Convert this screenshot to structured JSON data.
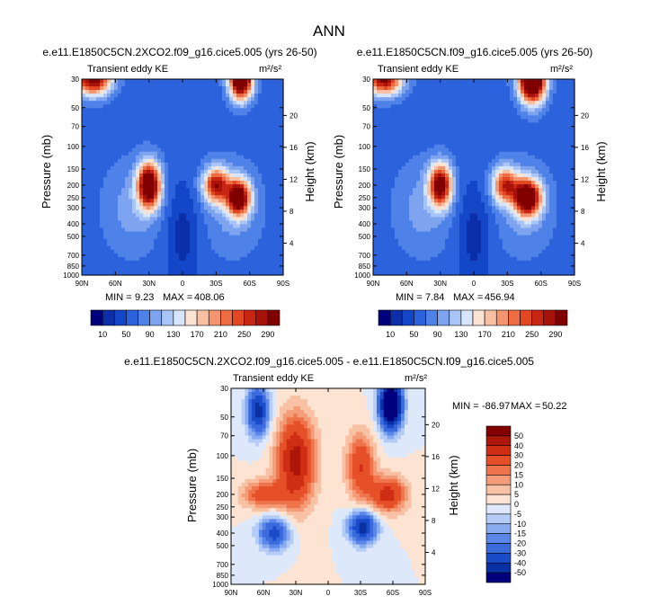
{
  "figure": {
    "title": "ANN"
  },
  "colors": {
    "fill_palette": [
      "#00007f",
      "#0a2fa8",
      "#1446c8",
      "#2c62dc",
      "#4f82e8",
      "#7ea4f0",
      "#a9c5f7",
      "#d6e5fb",
      "#fbe3d3",
      "#f7c0a3",
      "#f39670",
      "#ee6c42",
      "#e34822",
      "#c82612",
      "#a8120a",
      "#800000"
    ],
    "diff_palette": [
      "#00007f",
      "#0a30a5",
      "#1a4bc9",
      "#3a6adb",
      "#5b88e8",
      "#88aaf0",
      "#b5cdf6",
      "#dde9fb",
      "#fde4d2",
      "#f9c1a4",
      "#f49c78",
      "#ef744c",
      "#e65029",
      "#cf2e14",
      "#ad160a",
      "#840000"
    ]
  },
  "chart_data": [
    {
      "type": "heatmap",
      "panel": "left",
      "title": "e.e11.E1850C5CN.2XCO2.f09_g16.cice5.005 (yrs 26-50)",
      "subtitle": "Transient eddy KE",
      "units": "m²/s²",
      "xlabel": "",
      "ylabel": "Pressure (mb)",
      "ylabel_right": "Height (km)",
      "x_ticks": [
        "90N",
        "60N",
        "30N",
        "0",
        "30S",
        "60S",
        "90S"
      ],
      "y_ticks": [
        30,
        50,
        70,
        100,
        150,
        200,
        250,
        300,
        400,
        500,
        700,
        850,
        1000
      ],
      "y_ticks_right": [
        4,
        8,
        12,
        16,
        20
      ],
      "ylim": [
        1000,
        30
      ],
      "ylog": true,
      "min_label": "MIN =",
      "min_value": "9.23",
      "max_label": "MAX =",
      "max_value": "408.06",
      "colorbar_labels": [
        "10",
        "50",
        "90",
        "130",
        "170",
        "210",
        "250",
        "290"
      ],
      "blobs": [
        {
          "lat": 30,
          "p": 200,
          "value": 360,
          "sx": 7,
          "sy": 0.28
        },
        {
          "lat": -30,
          "p": 200,
          "value": 270,
          "sx": 8,
          "sy": 0.22
        },
        {
          "lat": -50,
          "p": 250,
          "value": 340,
          "sx": 7,
          "sy": 0.22
        },
        {
          "lat": -52,
          "p": 30,
          "value": 400,
          "sx": 7,
          "sy": 0.25
        },
        {
          "lat": 80,
          "p": 30,
          "value": 320,
          "sx": 11,
          "sy": 0.2
        }
      ]
    },
    {
      "type": "heatmap",
      "panel": "right",
      "title": "e.e11.E1850C5CN.f09_g16.cice5.005 (yrs 26-50)",
      "subtitle": "Transient eddy KE",
      "units": "m²/s²",
      "xlabel": "",
      "ylabel": "Pressure (mb)",
      "ylabel_right": "Height (km)",
      "x_ticks": [
        "90N",
        "60N",
        "30N",
        "0",
        "30S",
        "60S",
        "90S"
      ],
      "y_ticks": [
        30,
        50,
        70,
        100,
        150,
        200,
        250,
        300,
        400,
        500,
        700,
        850,
        1000
      ],
      "y_ticks_right": [
        4,
        8,
        12,
        16,
        20
      ],
      "ylim": [
        1000,
        30
      ],
      "ylog": true,
      "min_label": "MIN =",
      "min_value": "7.84",
      "max_label": "MAX =",
      "max_value": "456.94",
      "colorbar_labels": [
        "10",
        "50",
        "90",
        "130",
        "170",
        "210",
        "250",
        "290"
      ],
      "blobs": [
        {
          "lat": 30,
          "p": 200,
          "value": 320,
          "sx": 7,
          "sy": 0.26
        },
        {
          "lat": -28,
          "p": 200,
          "value": 250,
          "sx": 8,
          "sy": 0.22
        },
        {
          "lat": -48,
          "p": 250,
          "value": 360,
          "sx": 8,
          "sy": 0.22
        },
        {
          "lat": -52,
          "p": 30,
          "value": 450,
          "sx": 8,
          "sy": 0.28
        },
        {
          "lat": 80,
          "p": 30,
          "value": 300,
          "sx": 11,
          "sy": 0.2
        }
      ]
    },
    {
      "type": "heatmap",
      "panel": "difference",
      "title": "e.e11.E1850C5CN.2XCO2.f09_g16.cice5.005 - e.e11.E1850C5CN.f09_g16.cice5.005",
      "subtitle": "Transient eddy KE",
      "units": "m²/s²",
      "xlabel": "",
      "ylabel": "Pressure (mb)",
      "ylabel_right": "Height (km)",
      "x_ticks": [
        "90N",
        "60N",
        "30N",
        "0",
        "30S",
        "60S",
        "90S"
      ],
      "y_ticks": [
        30,
        50,
        70,
        100,
        150,
        200,
        250,
        300,
        400,
        500,
        700,
        850,
        1000
      ],
      "y_ticks_right": [
        4,
        8,
        12,
        16,
        20
      ],
      "ylim": [
        1000,
        30
      ],
      "ylog": true,
      "min_label": "MIN =",
      "min_value": "-86.97",
      "max_label": "MAX =",
      "max_value": "50.22",
      "colorbar_labels": [
        "50",
        "40",
        "30",
        "20",
        "15",
        "10",
        "5",
        "0",
        "-5",
        "-10",
        "-15",
        "-20",
        "-30",
        "-40",
        "-50"
      ],
      "blobs": [
        {
          "lat": 30,
          "p": 110,
          "value": 45,
          "sx": 12,
          "sy": 0.55
        },
        {
          "lat": -30,
          "p": 120,
          "value": 30,
          "sx": 9,
          "sy": 0.4
        },
        {
          "lat": -55,
          "p": 200,
          "value": 35,
          "sx": 12,
          "sy": 0.22
        },
        {
          "lat": 60,
          "p": 200,
          "value": 25,
          "sx": 14,
          "sy": 0.18
        },
        {
          "lat": 65,
          "p": 45,
          "value": -45,
          "sx": 7,
          "sy": 0.3
        },
        {
          "lat": -58,
          "p": 40,
          "value": -85,
          "sx": 7,
          "sy": 0.3
        },
        {
          "lat": -32,
          "p": 360,
          "value": -45,
          "sx": 9,
          "sy": 0.2
        },
        {
          "lat": 50,
          "p": 400,
          "value": -35,
          "sx": 10,
          "sy": 0.2
        }
      ]
    }
  ]
}
